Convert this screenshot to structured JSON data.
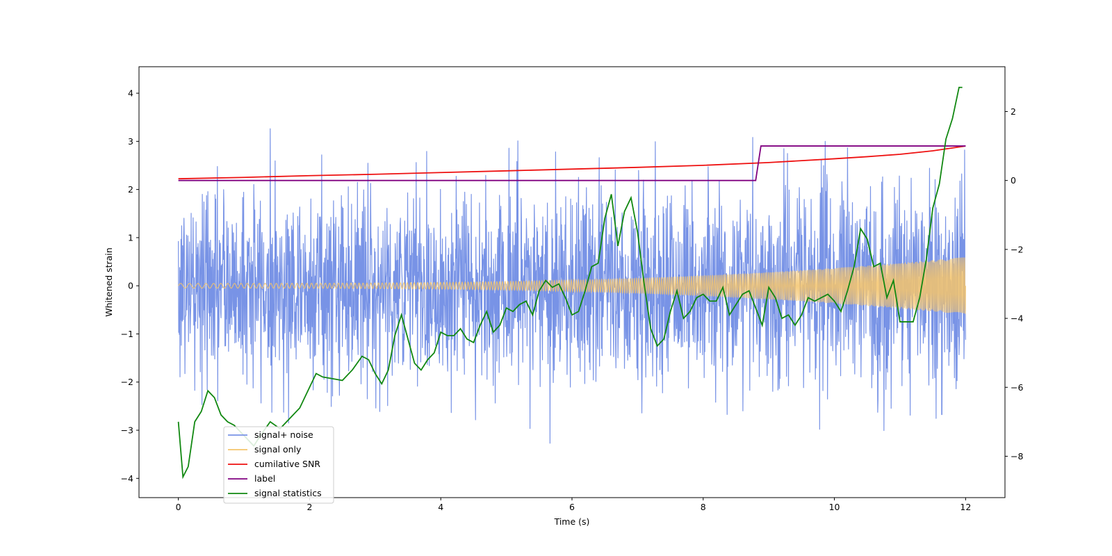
{
  "chart_data": {
    "type": "line",
    "xlabel": "Time (s)",
    "ylabel": "Whitened strain",
    "xlim": [
      -0.6,
      12.6
    ],
    "ylim": [
      -4.4,
      4.55
    ],
    "y2lim": [
      -9.2,
      3.3
    ],
    "xticks": [
      0,
      2,
      4,
      6,
      8,
      10,
      12
    ],
    "yticks": [
      -4,
      -3,
      -2,
      -1,
      0,
      1,
      2,
      3,
      4
    ],
    "y2ticks": [
      -8,
      -6,
      -4,
      -2,
      0,
      2
    ],
    "grid": false,
    "legend_position": "lower-left",
    "noise": {
      "duration": 12,
      "n_points": 2400,
      "std": 1.0,
      "clip": [
        -4.0,
        4.2
      ],
      "color": "#7893e6"
    },
    "series": [
      {
        "name": "signal+ noise",
        "axis": "left",
        "color": "#7893e6",
        "kind": "noise"
      },
      {
        "name": "signal only",
        "axis": "left",
        "color": "#f5c46b",
        "kind": "chirp",
        "amp_start": 0.05,
        "amp_end": 0.6,
        "amp_power": 3,
        "freq_start": 7,
        "freq_end": 48
      },
      {
        "name": "cumilative SNR",
        "axis": "right",
        "color": "#ee1111",
        "x": [
          0,
          1,
          2,
          3,
          4,
          5,
          6,
          7,
          8,
          9,
          10,
          10.5,
          11,
          11.5,
          12
        ],
        "y": [
          0.05,
          0.09,
          0.14,
          0.18,
          0.23,
          0.28,
          0.33,
          0.38,
          0.44,
          0.52,
          0.63,
          0.69,
          0.76,
          0.86,
          1.0
        ]
      },
      {
        "name": "label",
        "axis": "right",
        "color": "#800080",
        "x": [
          0,
          8.8,
          8.88,
          12
        ],
        "y": [
          0,
          0,
          1,
          1
        ]
      },
      {
        "name": "signal statistics",
        "axis": "right",
        "color": "#118811",
        "x": [
          0,
          0.07,
          0.15,
          0.25,
          0.35,
          0.45,
          0.55,
          0.65,
          0.75,
          0.85,
          0.95,
          1.05,
          1.15,
          1.25,
          1.4,
          1.55,
          1.7,
          1.85,
          2.0,
          2.1,
          2.2,
          2.35,
          2.5,
          2.65,
          2.8,
          2.9,
          3.0,
          3.1,
          3.2,
          3.3,
          3.4,
          3.5,
          3.6,
          3.7,
          3.8,
          3.9,
          4.0,
          4.1,
          4.2,
          4.3,
          4.4,
          4.5,
          4.6,
          4.7,
          4.8,
          4.9,
          5.0,
          5.1,
          5.2,
          5.3,
          5.4,
          5.5,
          5.6,
          5.7,
          5.8,
          5.9,
          6.0,
          6.1,
          6.2,
          6.3,
          6.4,
          6.5,
          6.6,
          6.7,
          6.8,
          6.9,
          7.0,
          7.1,
          7.2,
          7.3,
          7.4,
          7.5,
          7.6,
          7.7,
          7.8,
          7.9,
          8.0,
          8.1,
          8.2,
          8.3,
          8.4,
          8.5,
          8.6,
          8.7,
          8.8,
          8.9,
          9.0,
          9.1,
          9.2,
          9.3,
          9.4,
          9.5,
          9.6,
          9.7,
          9.8,
          9.9,
          10.0,
          10.1,
          10.2,
          10.3,
          10.4,
          10.5,
          10.6,
          10.7,
          10.8,
          10.9,
          11.0,
          11.1,
          11.2,
          11.3,
          11.4,
          11.5,
          11.6,
          11.7,
          11.8,
          11.9,
          11.95
        ],
        "y": [
          -7.0,
          -8.6,
          -8.3,
          -7.0,
          -6.7,
          -6.1,
          -6.3,
          -6.8,
          -7.0,
          -7.1,
          -7.3,
          -7.5,
          -7.7,
          -7.4,
          -7.0,
          -7.2,
          -6.9,
          -6.6,
          -6.0,
          -5.6,
          -5.7,
          -5.75,
          -5.8,
          -5.5,
          -5.1,
          -5.2,
          -5.6,
          -5.9,
          -5.5,
          -4.5,
          -3.9,
          -4.6,
          -5.3,
          -5.5,
          -5.2,
          -5.0,
          -4.4,
          -4.5,
          -4.5,
          -4.3,
          -4.6,
          -4.7,
          -4.2,
          -3.8,
          -4.4,
          -4.2,
          -3.7,
          -3.8,
          -3.6,
          -3.5,
          -3.9,
          -3.2,
          -2.9,
          -3.1,
          -3.0,
          -3.4,
          -3.9,
          -3.8,
          -3.2,
          -2.5,
          -2.4,
          -1.1,
          -0.4,
          -1.9,
          -0.9,
          -0.5,
          -1.5,
          -3.0,
          -4.3,
          -4.8,
          -4.6,
          -3.8,
          -3.2,
          -4.0,
          -3.8,
          -3.4,
          -3.3,
          -3.5,
          -3.5,
          -3.1,
          -3.9,
          -3.6,
          -3.3,
          -3.2,
          -3.7,
          -4.2,
          -3.1,
          -3.4,
          -4.0,
          -3.9,
          -4.2,
          -3.9,
          -3.4,
          -3.5,
          -3.4,
          -3.3,
          -3.5,
          -3.8,
          -3.2,
          -2.5,
          -1.4,
          -1.7,
          -2.5,
          -2.4,
          -3.4,
          -2.9,
          -4.1,
          -4.1,
          -4.1,
          -3.4,
          -2.3,
          -0.8,
          -0.1,
          1.2,
          1.8,
          2.7,
          2.7
        ]
      }
    ]
  }
}
